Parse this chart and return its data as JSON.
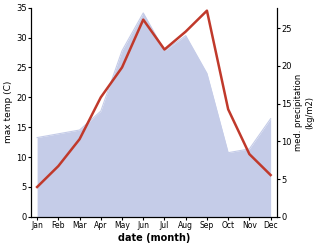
{
  "months": [
    "Jan",
    "Feb",
    "Mar",
    "Apr",
    "May",
    "Jun",
    "Jul",
    "Aug",
    "Sep",
    "Oct",
    "Nov",
    "Dec"
  ],
  "month_indices": [
    0,
    1,
    2,
    3,
    4,
    5,
    6,
    7,
    8,
    9,
    10,
    11
  ],
  "temperature": [
    5.0,
    8.5,
    13.0,
    20.0,
    25.0,
    33.0,
    28.0,
    31.0,
    34.5,
    18.0,
    10.5,
    7.0
  ],
  "precipitation": [
    10.5,
    11.0,
    11.5,
    14.0,
    22.0,
    27.0,
    22.0,
    24.0,
    19.0,
    8.5,
    9.0,
    13.0
  ],
  "temp_color": "#c0392b",
  "precip_fill_color": "#c5cce8",
  "precip_line_color": "#c5cce8",
  "temp_ylim": [
    0,
    35
  ],
  "precip_ylim": [
    0,
    27.7
  ],
  "temp_yticks": [
    0,
    5,
    10,
    15,
    20,
    25,
    30,
    35
  ],
  "precip_yticks": [
    0,
    5,
    10,
    15,
    20,
    25
  ],
  "xlabel": "date (month)",
  "ylabel_left": "max temp (C)",
  "ylabel_right": "med. precipitation\n(kg/m2)",
  "background_color": "#ffffff",
  "line_width": 1.8
}
